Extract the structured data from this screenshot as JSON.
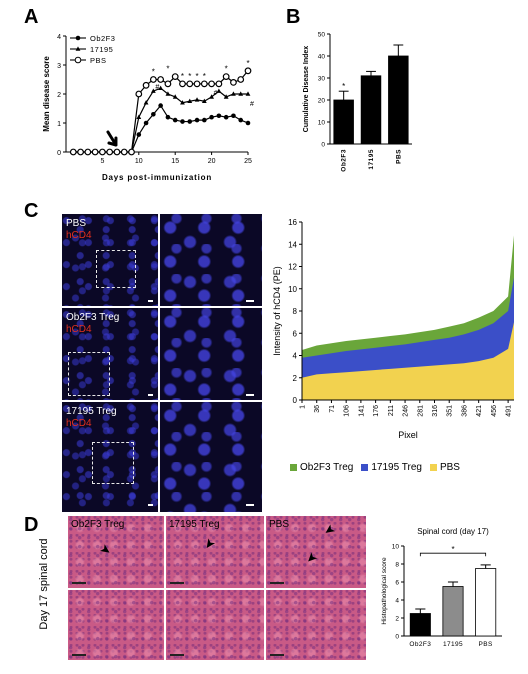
{
  "panels": {
    "a": "A",
    "b": "B",
    "c": "C",
    "d": "D"
  },
  "colors": {
    "ob2f3": "#000000",
    "p17195": "#000000",
    "pbs": "#000000",
    "green": "#6aa63a",
    "blue": "#3b4fc8",
    "yellow": "#f2d24f",
    "bar_b": "#000000",
    "bar_d_1": "#000000",
    "bar_d_2": "#8c8c8c",
    "bar_d_3": "#ffffff"
  },
  "chart_data": [
    {
      "id": "A",
      "type": "line",
      "xlabel": "Days post-immunization",
      "ylabel": "Mean disease score",
      "xlim": [
        0,
        25
      ],
      "ylim": [
        0,
        4
      ],
      "xticks": [
        "5",
        "10",
        "15",
        "20",
        "25"
      ],
      "yticks": [
        "0",
        "1",
        "2",
        "3",
        "4"
      ],
      "legend": [
        "Ob2F3",
        "17195",
        "PBS"
      ],
      "legend_position": "top-left",
      "x": [
        1,
        2,
        3,
        4,
        5,
        6,
        7,
        8,
        9,
        10,
        11,
        12,
        13,
        14,
        15,
        16,
        17,
        18,
        19,
        20,
        21,
        22,
        23,
        24,
        25
      ],
      "series": [
        {
          "name": "Ob2F3",
          "marker": "circle-filled",
          "values": [
            0,
            0,
            0,
            0,
            0,
            0,
            0,
            0,
            0,
            0.6,
            1.0,
            1.3,
            1.6,
            1.2,
            1.1,
            1.05,
            1.05,
            1.1,
            1.1,
            1.2,
            1.25,
            1.2,
            1.25,
            1.1,
            1.0
          ]
        },
        {
          "name": "17195",
          "marker": "triangle",
          "values": [
            0,
            0,
            0,
            0,
            0,
            0,
            0,
            0,
            0,
            1.2,
            1.7,
            2.1,
            2.2,
            2.0,
            1.9,
            1.7,
            1.75,
            1.8,
            1.75,
            1.9,
            2.1,
            1.9,
            2.0,
            2.0,
            2.0
          ]
        },
        {
          "name": "PBS",
          "marker": "circle-open",
          "values": [
            0,
            0,
            0,
            0,
            0,
            0,
            0,
            0,
            0,
            2.0,
            2.3,
            2.5,
            2.5,
            2.35,
            2.6,
            2.35,
            2.35,
            2.35,
            2.35,
            2.35,
            2.35,
            2.6,
            2.4,
            2.5,
            2.8
          ]
        }
      ],
      "annotations": [
        "*",
        "*",
        "*",
        "*",
        "*",
        "*",
        "*",
        "*",
        "#",
        "#",
        "#"
      ],
      "arrow_day": 7
    },
    {
      "id": "B",
      "type": "bar",
      "ylabel": "Cumulative Disease Index",
      "ylim": [
        0,
        50
      ],
      "yticks": [
        "0",
        "10",
        "20",
        "30",
        "40",
        "50"
      ],
      "categories": [
        "Ob2F3",
        "17195",
        "PBS"
      ],
      "values": [
        20,
        31,
        40
      ],
      "errors": [
        4,
        2,
        5
      ],
      "annotations": [
        "*"
      ]
    },
    {
      "id": "C",
      "type": "area",
      "ylabel": "Intensity of hCD4 (PE)",
      "xlabel": "Pixel",
      "ylim": [
        0,
        16
      ],
      "yticks": [
        "0",
        "2",
        "4",
        "6",
        "8",
        "10",
        "12",
        "14",
        "16"
      ],
      "xticks": [
        "1",
        "36",
        "71",
        "106",
        "141",
        "176",
        "211",
        "246",
        "281",
        "316",
        "351",
        "386",
        "421",
        "456",
        "491"
      ],
      "legend": [
        "Ob2F3 Treg",
        "17195 Treg",
        "PBS"
      ],
      "legend_position": "bottom",
      "x": [
        1,
        36,
        71,
        106,
        141,
        176,
        211,
        246,
        281,
        316,
        351,
        386,
        421,
        456,
        491,
        505
      ],
      "series": [
        {
          "name": "PBS",
          "values": [
            2.0,
            2.3,
            2.4,
            2.5,
            2.6,
            2.7,
            2.8,
            2.9,
            3.0,
            3.1,
            3.2,
            3.3,
            3.5,
            3.8,
            4.6,
            7.0
          ]
        },
        {
          "name": "17195 Treg",
          "values": [
            3.8,
            4.0,
            4.2,
            4.4,
            4.55,
            4.7,
            4.85,
            5.0,
            5.2,
            5.4,
            5.6,
            5.9,
            6.3,
            6.9,
            8.0,
            11.0
          ]
        },
        {
          "name": "Ob2F3 Treg",
          "values": [
            4.5,
            4.9,
            5.1,
            5.3,
            5.45,
            5.6,
            5.75,
            5.9,
            6.1,
            6.3,
            6.6,
            6.9,
            7.4,
            8.0,
            9.3,
            14.8
          ]
        }
      ]
    },
    {
      "id": "D",
      "type": "bar",
      "title": "Spinal cord (day 17)",
      "ylabel": "Histopathological score",
      "ylim": [
        0,
        10
      ],
      "yticks": [
        "0",
        "2",
        "4",
        "6",
        "8",
        "10"
      ],
      "categories": [
        "Ob2F3",
        "17195",
        "PBS"
      ],
      "values": [
        2.5,
        5.5,
        7.5
      ],
      "errors": [
        0.5,
        0.5,
        0.4
      ],
      "annotations": [
        "*"
      ]
    }
  ],
  "micrographs_c": {
    "rows": [
      {
        "label": "PBS",
        "marker": "hCD4"
      },
      {
        "label": "Ob2F3 Treg",
        "marker": "hCD4"
      },
      {
        "label": "17195 Treg",
        "marker": "hCD4"
      }
    ]
  },
  "micrographs_d": {
    "columns": [
      "Ob2F3 Treg",
      "17195 Treg",
      "PBS"
    ],
    "row_label": "Day 17 spinal cord"
  }
}
